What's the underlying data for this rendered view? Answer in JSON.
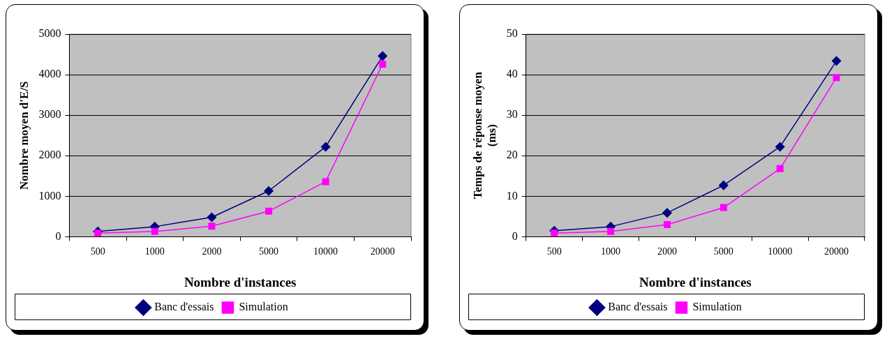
{
  "chart_data": [
    {
      "type": "line",
      "xlabel": "Nombre d'instances",
      "ylabel": "Nombre moyen d'E/S",
      "categories": [
        "500",
        "1000",
        "2000",
        "5000",
        "10000",
        "20000"
      ],
      "series": [
        {
          "name": "Banc d'essais",
          "color": "#000080",
          "marker": "diamond",
          "values": [
            130,
            250,
            480,
            1130,
            2220,
            4460
          ]
        },
        {
          "name": "Simulation",
          "color": "#ff00ff",
          "marker": "square",
          "values": [
            90,
            130,
            260,
            630,
            1360,
            4260
          ]
        }
      ],
      "ylim": [
        0,
        5000
      ],
      "yticks": [
        0,
        1000,
        2000,
        3000,
        4000,
        5000
      ],
      "grid": "y",
      "legend": "bottom"
    },
    {
      "type": "line",
      "xlabel": "Nombre d'instances",
      "ylabel": "Temps de réponse moyen (ms)",
      "categories": [
        "500",
        "1000",
        "2000",
        "5000",
        "10000",
        "20000"
      ],
      "series": [
        {
          "name": "Banc d'essais",
          "color": "#000080",
          "marker": "diamond",
          "values": [
            1.5,
            2.5,
            5.9,
            12.7,
            22.2,
            43.4
          ]
        },
        {
          "name": "Simulation",
          "color": "#ff00ff",
          "marker": "square",
          "values": [
            0.9,
            1.3,
            3.0,
            7.2,
            16.8,
            39.3
          ]
        }
      ],
      "ylim": [
        0,
        50
      ],
      "yticks": [
        0,
        10,
        20,
        30,
        40,
        50
      ],
      "grid": "y",
      "legend": "bottom"
    }
  ]
}
